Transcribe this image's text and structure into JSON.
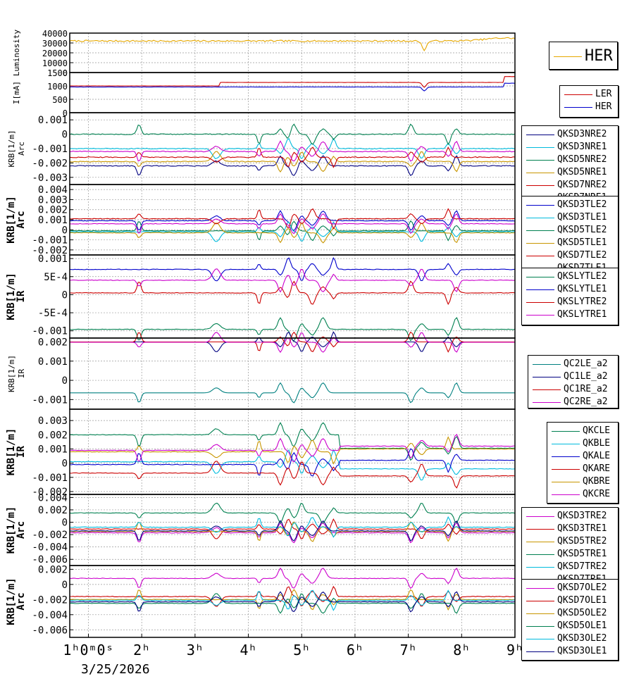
{
  "chart_data": {
    "type": "line",
    "title": "",
    "time_axis": {
      "range": [
        0.65,
        9.0
      ],
      "tick_labels": [
        "1ʰ0ᵐ0ˢ",
        "2ʰ",
        "3ʰ",
        "4ʰ",
        "5ʰ",
        "6ʰ",
        "7ʰ",
        "8ʰ",
        "9ʰ"
      ],
      "tick_values": [
        1,
        2,
        3,
        4,
        5,
        6,
        7,
        8,
        9
      ],
      "date_label": "3/25/2026"
    },
    "panels": [
      {
        "ylabel": "Luminosity",
        "ylim": [
          0,
          40000
        ],
        "yticks": [
          0,
          10000,
          20000,
          30000,
          40000
        ],
        "ytick_labels": [
          "0",
          "10000",
          "20000",
          "30000",
          "40000"
        ],
        "series": [
          {
            "name": "HER",
            "color": "#e6a800",
            "base": 32000,
            "noise": 800,
            "events": [
              [
                7.3,
                -9000,
                0.06
              ],
              [
                8.8,
                3000,
                0.5
              ]
            ]
          }
        ],
        "legend_style": "big"
      },
      {
        "ylabel": "I[mA]",
        "ylim": [
          0,
          1500
        ],
        "yticks": [
          0,
          500,
          1000,
          1500
        ],
        "ytick_labels": [
          "0",
          "500",
          "1000",
          "1500"
        ],
        "series": [
          {
            "name": "LER",
            "color": "#cc0000",
            "base": 1000,
            "noise": 4,
            "steps": [
              [
                3.45,
                1130
              ],
              [
                8.8,
                1350
              ]
            ],
            "events": [
              [
                7.3,
                -180,
                0.05
              ]
            ]
          },
          {
            "name": "HER",
            "color": "#0000cc",
            "base": 960,
            "noise": 4,
            "steps": [
              [
                8.8,
                1100
              ]
            ],
            "events": [
              [
                7.3,
                -150,
                0.05
              ]
            ]
          }
        ]
      },
      {
        "ylabel": "KRB[1/m]\nArc",
        "ylim": [
          -0.0035,
          0.0015
        ],
        "yticks": [
          -0.003,
          -0.002,
          -0.001,
          0,
          0.001
        ],
        "ytick_labels": [
          "-0.003",
          "-0.002",
          "-0.001",
          "0",
          "0.001"
        ],
        "series": [
          {
            "name": "QKSD3NRE2",
            "color": "#000080",
            "base": -0.0022,
            "noise": 3e-05
          },
          {
            "name": "QKSD3NRE1",
            "color": "#00bbdd",
            "base": -0.001,
            "noise": 3e-05
          },
          {
            "name": "QKSD5NRE2",
            "color": "#008050",
            "base": 0.0,
            "noise": 3e-05
          },
          {
            "name": "QKSD5NRE1",
            "color": "#c89600",
            "base": -0.0019,
            "noise": 3e-05
          },
          {
            "name": "QKSD7NRE2",
            "color": "#cc0000",
            "base": -0.0016,
            "noise": 3e-05
          },
          {
            "name": "QKSD7NRE1",
            "color": "#cc00cc",
            "base": -0.0012,
            "noise": 3e-05
          }
        ]
      },
      {
        "ylabel": "KRB[1/m]\nArc",
        "ylim": [
          -0.0025,
          0.0045
        ],
        "yticks": [
          -0.002,
          -0.001,
          0,
          0.001,
          0.002,
          0.003,
          0.004
        ],
        "ytick_labels": [
          "-0.002",
          "-0.001",
          "0",
          "0.001",
          "0.002",
          "0.003",
          "0.004"
        ],
        "series": [
          {
            "name": "QKSD3TLE2",
            "color": "#0000cc",
            "base": 0.0009,
            "noise": 3e-05
          },
          {
            "name": "QKSD3TLE1",
            "color": "#00bbdd",
            "base": -0.0002,
            "noise": 3e-05
          },
          {
            "name": "QKSD5TLE2",
            "color": "#008050",
            "base": -0.0001,
            "noise": 3e-05
          },
          {
            "name": "QKSD5TLE1",
            "color": "#c89600",
            "base": -0.0003,
            "noise": 3e-05
          },
          {
            "name": "QKSD7TLE2",
            "color": "#cc0000",
            "base": 0.0011,
            "noise": 3e-05
          },
          {
            "name": "QKSD7TLE1",
            "color": "#cc00cc",
            "base": 0.0006,
            "noise": 3e-05
          }
        ]
      },
      {
        "ylabel": "KRB[1/m]\nIR",
        "ylim": [
          -0.0012,
          0.0011
        ],
        "yticks": [
          -0.001,
          -0.0005,
          0,
          0.0005,
          0.001
        ],
        "ytick_labels": [
          "-0.001",
          "-5E-4",
          "0",
          "5E-4",
          "0.001"
        ],
        "series": [
          {
            "name": "QKSLYTLE2",
            "color": "#008050",
            "base": -0.00096,
            "noise": 8e-06
          },
          {
            "name": "QKSLYTLE1",
            "color": "#0000cc",
            "base": 0.0007,
            "noise": 8e-06
          },
          {
            "name": "QKSLYTRE2",
            "color": "#cc0000",
            "base": 5e-05,
            "noise": 8e-06
          },
          {
            "name": "QKSLYTRE1",
            "color": "#cc00cc",
            "base": 0.0004,
            "noise": 8e-06
          }
        ]
      },
      {
        "ylabel": "KRB[1/m]\nIR",
        "ylim": [
          -0.0015,
          0.0022
        ],
        "yticks": [
          -0.001,
          0,
          0.001,
          0.002
        ],
        "ytick_labels": [
          "-0.001",
          "0",
          "0.001",
          "0.002"
        ],
        "series": [
          {
            "name": "QC2LE_a2",
            "color": "#008080",
            "base": -0.00065,
            "noise": 0
          },
          {
            "name": "QC1LE_a2",
            "color": "#000080",
            "base": 0.002,
            "noise": 0
          },
          {
            "name": "QC1RE_a2",
            "color": "#cc0000",
            "base": 0.002,
            "noise": 0
          },
          {
            "name": "QC2RE_a2",
            "color": "#cc00cc",
            "base": 0.00198,
            "noise": 0
          }
        ]
      },
      {
        "ylabel": "KRB[1/m]\nIR",
        "ylim": [
          -0.0022,
          0.0038
        ],
        "yticks": [
          -0.002,
          -0.001,
          0,
          0.001,
          0.002,
          0.003
        ],
        "ytick_labels": [
          "-0.002",
          "-0.001",
          "0",
          "0.001",
          "0.002",
          "0.003"
        ],
        "series": [
          {
            "name": "QKCLE",
            "color": "#008050",
            "base": 0.002,
            "noise": 2e-05,
            "steps": [
              [
                5.7,
                0.00105
              ]
            ]
          },
          {
            "name": "QKBLE",
            "color": "#00bbdd",
            "base": 0.0001,
            "noise": 2e-05,
            "steps": [
              [
                5.7,
                -0.0004
              ]
            ]
          },
          {
            "name": "QKALE",
            "color": "#0000cc",
            "base": -0.0001,
            "noise": 2e-05,
            "steps": [
              [
                5.7,
                0.0002
              ]
            ]
          },
          {
            "name": "QKARE",
            "color": "#cc0000",
            "base": -0.0007,
            "noise": 2e-05,
            "steps": [
              [
                5.7,
                -0.0009
              ]
            ]
          },
          {
            "name": "QKBRE",
            "color": "#c89600",
            "base": 0.0008,
            "noise": 2e-05,
            "steps": [
              [
                5.7,
                0.001
              ]
            ]
          },
          {
            "name": "QKCRE",
            "color": "#cc00cc",
            "base": 0.0009,
            "noise": 2e-05,
            "steps": [
              [
                5.7,
                0.0012
              ]
            ]
          }
        ]
      },
      {
        "ylabel": "KRB[1/m]\nArc",
        "ylim": [
          -0.007,
          0.0045
        ],
        "yticks": [
          -0.006,
          -0.004,
          -0.002,
          0,
          0.002,
          0.004
        ],
        "ytick_labels": [
          "-0.006",
          "-0.004",
          "-0.002",
          "0",
          "0.002",
          "0.004"
        ],
        "series": [
          {
            "name": "QKSD3TRE2",
            "color": "#cc00cc",
            "base": -0.0017,
            "noise": 5e-05
          },
          {
            "name": "QKSD3TRE1",
            "color": "#cc0000",
            "base": -0.0011,
            "noise": 5e-05
          },
          {
            "name": "QKSD5TRE2",
            "color": "#c89600",
            "base": -0.0015,
            "noise": 5e-05
          },
          {
            "name": "QKSD5TRE1",
            "color": "#008050",
            "base": 0.0015,
            "noise": 5e-05
          },
          {
            "name": "QKSD7TRE2",
            "color": "#00bbdd",
            "base": -0.0008,
            "noise": 5e-05
          },
          {
            "name": "QKSD7TRE1",
            "color": "#000080",
            "base": -0.0014,
            "noise": 5e-05
          }
        ]
      },
      {
        "ylabel": "KRB[1/m]\nArc",
        "ylim": [
          -0.007,
          0.0025
        ],
        "yticks": [
          -0.006,
          -0.004,
          -0.002,
          0,
          0.002
        ],
        "ytick_labels": [
          "-0.006",
          "-0.004",
          "-0.002",
          "0",
          "0.002"
        ],
        "series": [
          {
            "name": "QKSD7OLE2",
            "color": "#cc00cc",
            "base": 0.0008,
            "noise": 4e-05
          },
          {
            "name": "QKSD7OLE1",
            "color": "#cc0000",
            "base": -0.0016,
            "noise": 4e-05
          },
          {
            "name": "QKSD5OLE2",
            "color": "#c89600",
            "base": -0.002,
            "noise": 4e-05
          },
          {
            "name": "QKSD5OLE1",
            "color": "#008050",
            "base": -0.0025,
            "noise": 4e-05
          },
          {
            "name": "QKSD3OLE2",
            "color": "#00bbdd",
            "base": -0.0021,
            "noise": 4e-05
          },
          {
            "name": "QKSD3OLE1",
            "color": "#000080",
            "base": -0.0023,
            "noise": 4e-05
          }
        ]
      }
    ]
  }
}
